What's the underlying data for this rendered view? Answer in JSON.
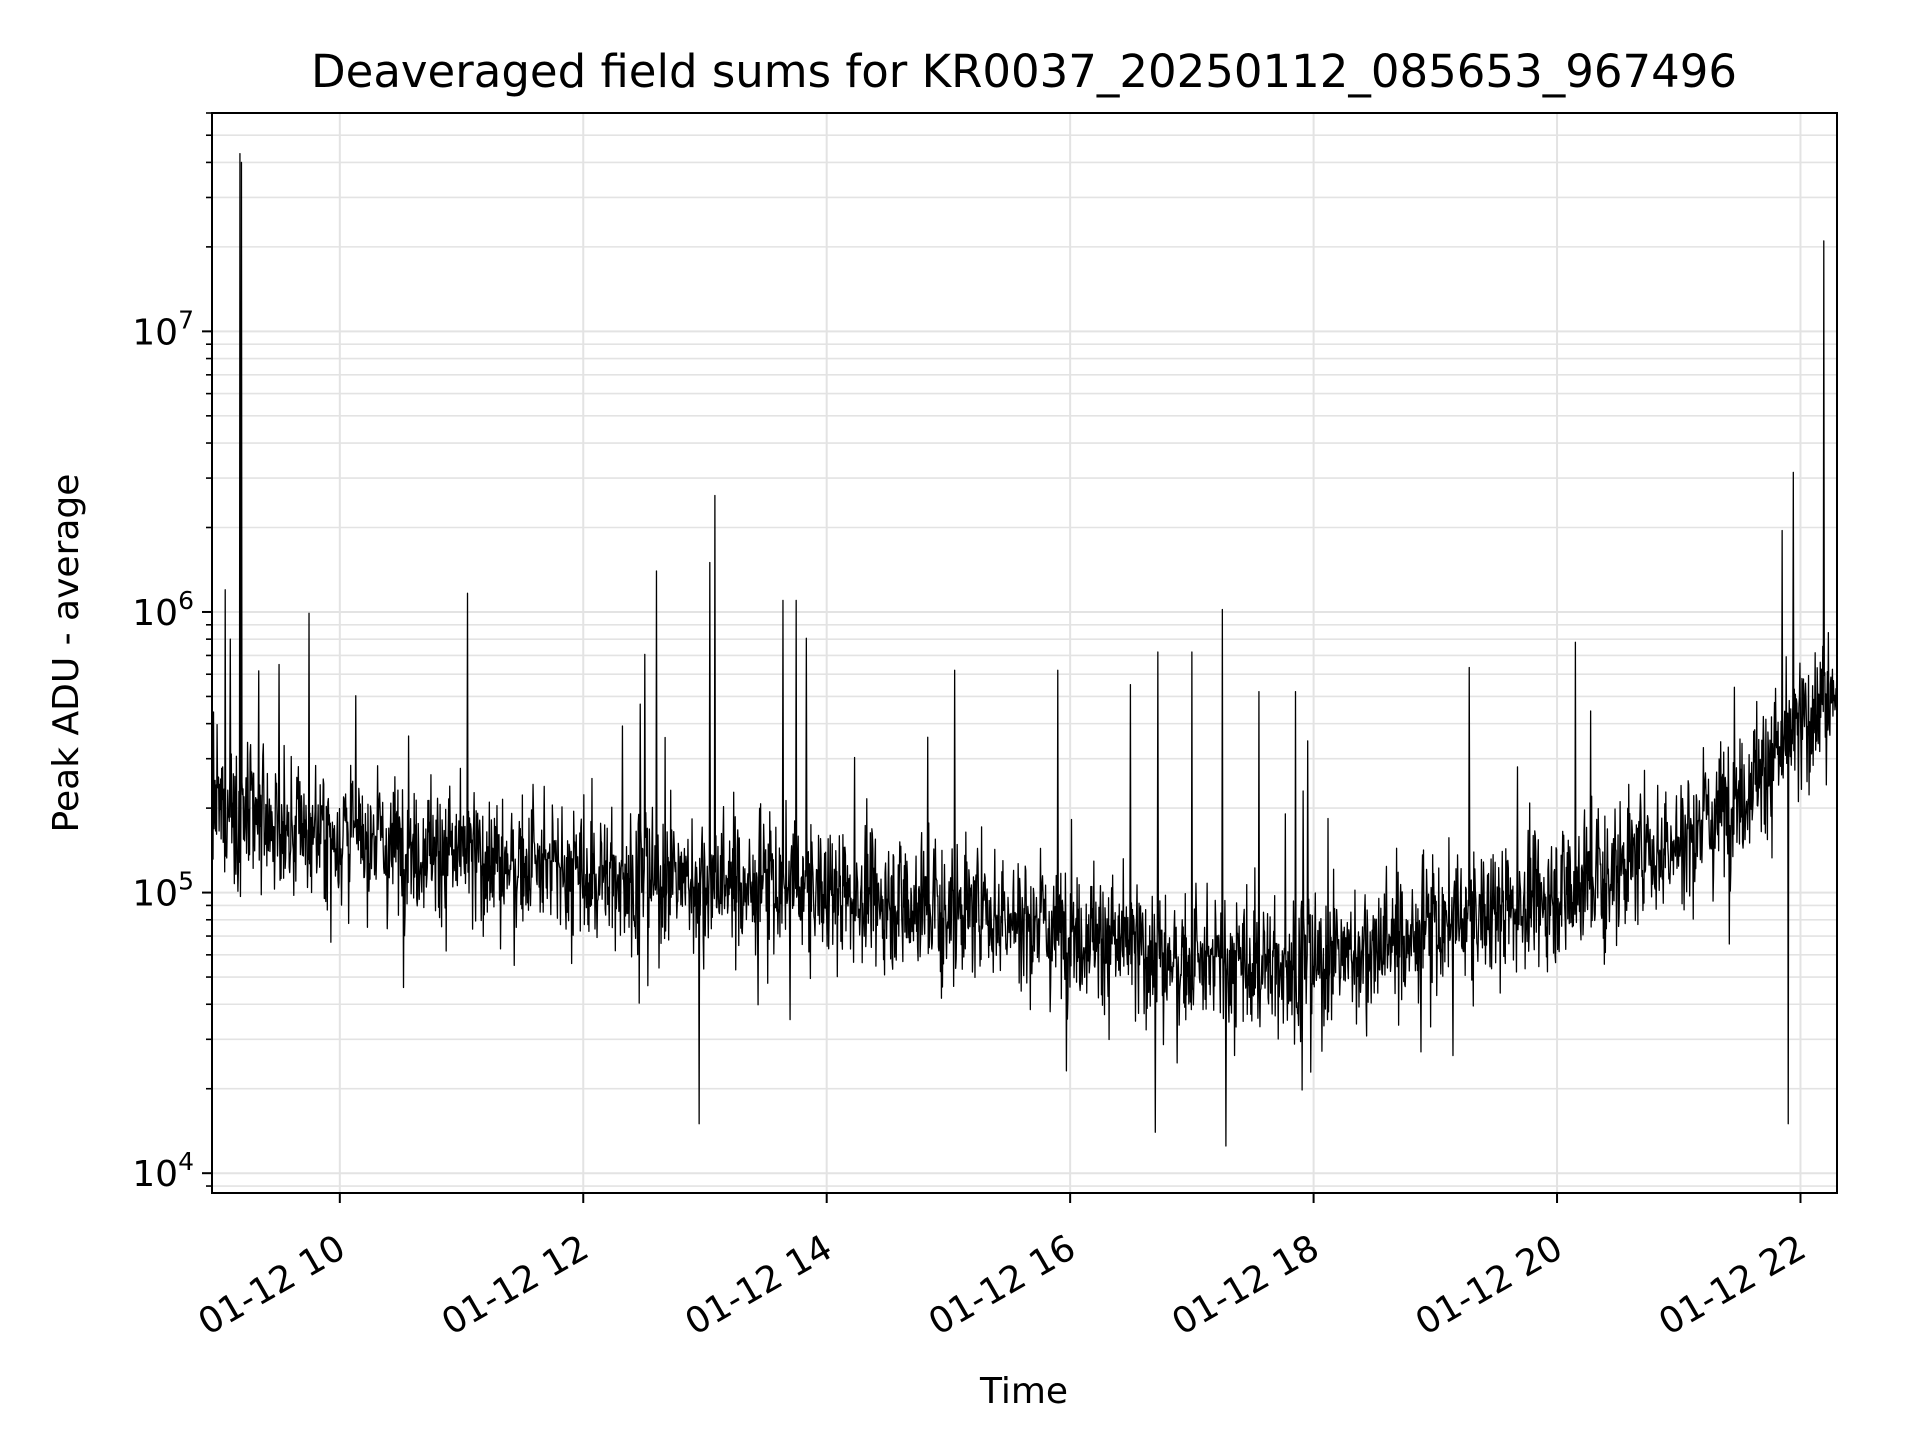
{
  "chart_data": {
    "type": "line",
    "title": "Deaveraged field sums for KR0037_20250112_085653_967496",
    "xlabel": "Time",
    "ylabel": "Peak ADU - average",
    "yscale": "log",
    "ylim": [
      8500,
      60000000
    ],
    "xlim_hours": [
      8.95,
      22.3
    ],
    "grid": true,
    "line_color": "#000000",
    "grid_color": "#e3e3e3",
    "x_ticks": [
      {
        "hour": 10,
        "label": "01-12 10"
      },
      {
        "hour": 12,
        "label": "01-12 12"
      },
      {
        "hour": 14,
        "label": "01-12 14"
      },
      {
        "hour": 16,
        "label": "01-12 16"
      },
      {
        "hour": 18,
        "label": "01-12 18"
      },
      {
        "hour": 20,
        "label": "01-12 20"
      },
      {
        "hour": 22,
        "label": "01-12 22"
      }
    ],
    "y_ticks": [
      {
        "value": 10000,
        "base": "10",
        "exp": "4"
      },
      {
        "value": 100000,
        "base": "10",
        "exp": "5"
      },
      {
        "value": 1000000,
        "base": "10",
        "exp": "6"
      },
      {
        "value": 10000000,
        "base": "10",
        "exp": "7"
      }
    ],
    "baseline": [
      {
        "hour": 8.95,
        "value": 200000
      },
      {
        "hour": 9.5,
        "value": 170000
      },
      {
        "hour": 10.5,
        "value": 150000
      },
      {
        "hour": 12.0,
        "value": 115000
      },
      {
        "hour": 13.7,
        "value": 105000
      },
      {
        "hour": 14.5,
        "value": 95000
      },
      {
        "hour": 16.0,
        "value": 75000
      },
      {
        "hour": 17.0,
        "value": 55000
      },
      {
        "hour": 18.0,
        "value": 55000
      },
      {
        "hour": 19.0,
        "value": 75000
      },
      {
        "hour": 20.0,
        "value": 100000
      },
      {
        "hour": 21.0,
        "value": 150000
      },
      {
        "hour": 21.6,
        "value": 250000
      },
      {
        "hour": 22.3,
        "value": 550000
      }
    ],
    "spikes": [
      {
        "hour": 9.06,
        "value": 1200000
      },
      {
        "hour": 9.1,
        "value": 800000
      },
      {
        "hour": 9.18,
        "value": 43000000
      },
      {
        "hour": 9.19,
        "value": 40000000
      },
      {
        "hour": 9.5,
        "value": 650000
      },
      {
        "hour": 12.6,
        "value": 1400000
      },
      {
        "hour": 12.95,
        "value": 15000
      },
      {
        "hour": 13.04,
        "value": 1500000
      },
      {
        "hour": 13.08,
        "value": 2600000
      },
      {
        "hour": 13.64,
        "value": 1100000
      },
      {
        "hour": 13.75,
        "value": 1100000
      },
      {
        "hour": 15.05,
        "value": 620000
      },
      {
        "hour": 15.9,
        "value": 620000
      },
      {
        "hour": 16.7,
        "value": 14000
      },
      {
        "hour": 16.72,
        "value": 720000
      },
      {
        "hour": 17.0,
        "value": 720000
      },
      {
        "hour": 17.25,
        "value": 1020000
      },
      {
        "hour": 17.28,
        "value": 12500
      },
      {
        "hour": 17.55,
        "value": 520000
      },
      {
        "hour": 17.85,
        "value": 520000
      },
      {
        "hour": 20.15,
        "value": 780000
      },
      {
        "hour": 21.85,
        "value": 1950000
      },
      {
        "hour": 21.9,
        "value": 15000
      },
      {
        "hour": 22.19,
        "value": 21000000
      }
    ]
  }
}
